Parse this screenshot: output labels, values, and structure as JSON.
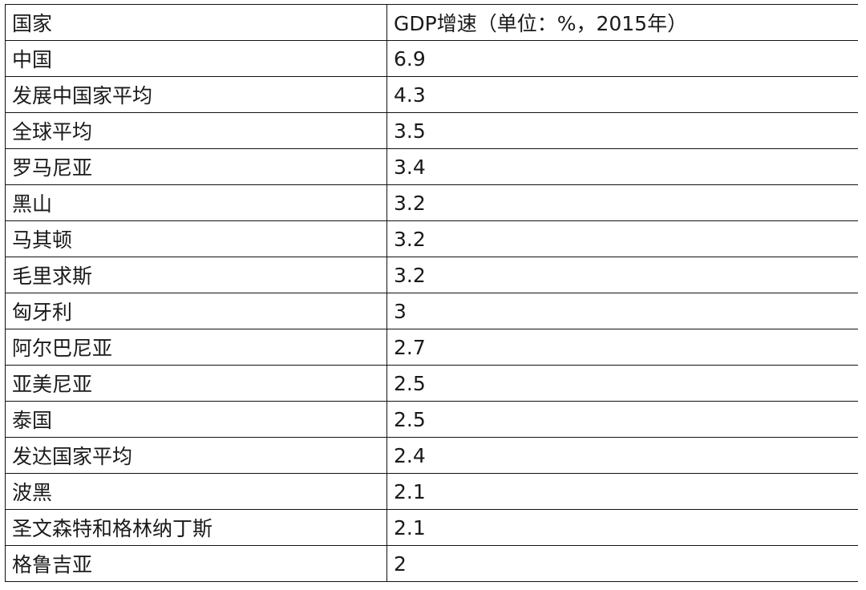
{
  "table": {
    "headers": {
      "country": "国家",
      "gdp": "GDP增速（单位：%，2015年）"
    },
    "rows": [
      {
        "country": "中国",
        "gdp": "6.9"
      },
      {
        "country": "发展中国家平均",
        "gdp": "4.3"
      },
      {
        "country": "全球平均",
        "gdp": "3.5"
      },
      {
        "country": "罗马尼亚",
        "gdp": "3.4"
      },
      {
        "country": "黑山",
        "gdp": "3.2"
      },
      {
        "country": "马其顿",
        "gdp": "3.2"
      },
      {
        "country": "毛里求斯",
        "gdp": "3.2"
      },
      {
        "country": "匈牙利",
        "gdp": "3"
      },
      {
        "country": "阿尔巴尼亚",
        "gdp": "2.7"
      },
      {
        "country": "亚美尼亚",
        "gdp": "2.5"
      },
      {
        "country": "泰国",
        "gdp": "2.5"
      },
      {
        "country": "发达国家平均",
        "gdp": "2.4"
      },
      {
        "country": "波黑",
        "gdp": "2.1"
      },
      {
        "country": "圣文森特和格林纳丁斯",
        "gdp": "2.1"
      },
      {
        "country": "格鲁吉亚",
        "gdp": "2"
      }
    ]
  }
}
